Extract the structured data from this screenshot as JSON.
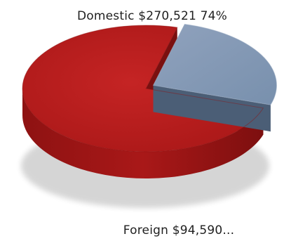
{
  "chart_data": {
    "type": "pie",
    "title": "",
    "slices": [
      {
        "label": "Domestic",
        "value": 270521,
        "value_text": "$270,521",
        "percent": 74,
        "percent_text": "74%",
        "color": "#b41d1d"
      },
      {
        "label": "Foreign",
        "value": 94590,
        "value_text": "$94,590...",
        "percent": 26,
        "color": "#7f92a9"
      }
    ],
    "label_texts": [
      "Domestic $270,521 74%",
      "Foreign  $94,590..."
    ],
    "legend": "none",
    "style": "3d-exploded"
  }
}
